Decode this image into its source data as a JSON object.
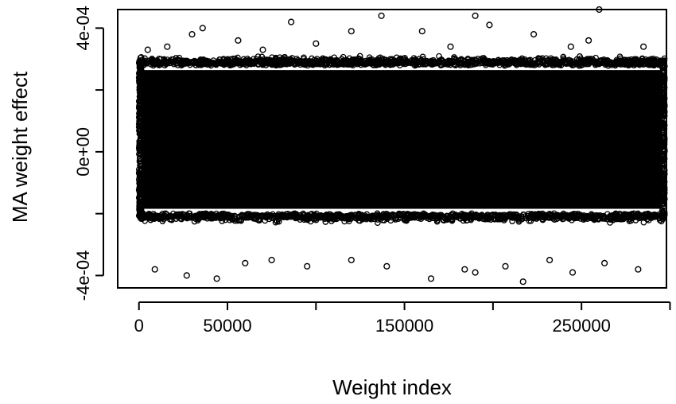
{
  "chart_data": {
    "type": "scatter",
    "title": "",
    "xlabel": "Weight index",
    "ylabel": "MA weight effect",
    "xlim": [
      -12000,
      298000
    ],
    "ylim": [
      -0.00044,
      0.00046
    ],
    "n_points_approx": 300000,
    "marker": "open-circle",
    "marker_color": "#000000",
    "grid": false,
    "box": true,
    "x_ticks": [
      {
        "value": 0,
        "label": "0"
      },
      {
        "value": 50000,
        "label": "50000"
      },
      {
        "value": 100000,
        "label": ""
      },
      {
        "value": 150000,
        "label": "150000"
      },
      {
        "value": 200000,
        "label": ""
      },
      {
        "value": 250000,
        "label": "250000"
      },
      {
        "value": 300000,
        "label": ""
      }
    ],
    "y_ticks": [
      {
        "value": -0.0004,
        "label": "-4e-04"
      },
      {
        "value": -0.0002,
        "label": ""
      },
      {
        "value": 0,
        "label": "0e+00"
      },
      {
        "value": 0.0002,
        "label": ""
      },
      {
        "value": 0.0004,
        "label": "4e-04"
      }
    ],
    "dense_band": {
      "x_range": [
        0,
        297000
      ],
      "y_range": [
        -0.00021,
        0.00029
      ]
    },
    "outliers": [
      {
        "x": 260000,
        "y": 0.00046
      },
      {
        "x": 137000,
        "y": 0.00044
      },
      {
        "x": 190000,
        "y": 0.00044
      },
      {
        "x": 86000,
        "y": 0.00042
      },
      {
        "x": 36000,
        "y": 0.0004
      },
      {
        "x": 198000,
        "y": 0.00041
      },
      {
        "x": 160000,
        "y": 0.00039
      },
      {
        "x": 30000,
        "y": 0.00038
      },
      {
        "x": 120000,
        "y": 0.00039
      },
      {
        "x": 223000,
        "y": 0.00038
      },
      {
        "x": 5000,
        "y": 0.00033
      },
      {
        "x": 56000,
        "y": 0.00036
      },
      {
        "x": 254000,
        "y": 0.00036
      },
      {
        "x": 100000,
        "y": 0.00035
      },
      {
        "x": 285000,
        "y": 0.00034
      },
      {
        "x": 70000,
        "y": 0.00033
      },
      {
        "x": 16000,
        "y": 0.00034
      },
      {
        "x": 176000,
        "y": 0.00034
      },
      {
        "x": 244000,
        "y": 0.00034
      },
      {
        "x": 44000,
        "y": -0.00041
      },
      {
        "x": 165000,
        "y": -0.00041
      },
      {
        "x": 217000,
        "y": -0.00042
      },
      {
        "x": 27000,
        "y": -0.0004
      },
      {
        "x": 190000,
        "y": -0.00039
      },
      {
        "x": 245000,
        "y": -0.00039
      },
      {
        "x": 9000,
        "y": -0.00038
      },
      {
        "x": 184000,
        "y": -0.00038
      },
      {
        "x": 282000,
        "y": -0.00038
      },
      {
        "x": 95000,
        "y": -0.00037
      },
      {
        "x": 140000,
        "y": -0.00037
      },
      {
        "x": 207000,
        "y": -0.00037
      },
      {
        "x": 60000,
        "y": -0.00036
      },
      {
        "x": 263000,
        "y": -0.00036
      },
      {
        "x": 120000,
        "y": -0.00035
      },
      {
        "x": 75000,
        "y": -0.00035
      },
      {
        "x": 232000,
        "y": -0.00035
      }
    ]
  }
}
